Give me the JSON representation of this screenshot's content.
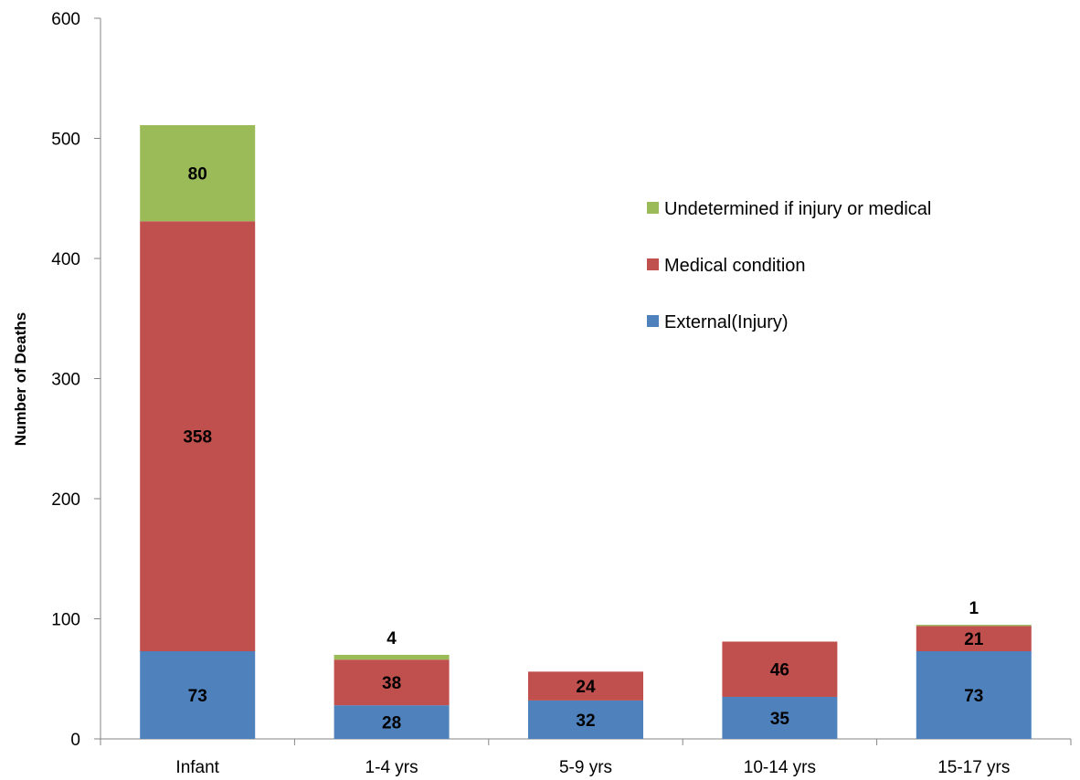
{
  "chart_data": {
    "type": "bar",
    "stacked": true,
    "categories": [
      "Infant",
      "1-4 yrs",
      "5-9 yrs",
      "10-14 yrs",
      "15-17 yrs"
    ],
    "series": [
      {
        "name": "External(Injury)",
        "values": [
          73,
          28,
          32,
          35,
          73
        ],
        "labels": [
          "73",
          "28",
          "32",
          "35",
          "73"
        ],
        "color": "#4f81bd"
      },
      {
        "name": "Medical condition",
        "values": [
          358,
          38,
          24,
          46,
          21
        ],
        "labels": [
          "358",
          "38",
          "24",
          "46",
          "21"
        ],
        "color": "#c0504d"
      },
      {
        "name": "Undetermined if injury or medical",
        "values": [
          80,
          4,
          0,
          0,
          1
        ],
        "labels": [
          "80",
          "4",
          "",
          "",
          "1"
        ],
        "color": "#9bbb59"
      }
    ],
    "title": "",
    "xlabel": "",
    "ylabel": "Number of Deaths",
    "ylim": [
      0,
      600
    ],
    "yticks": [
      0,
      100,
      200,
      300,
      400,
      500,
      600
    ],
    "grid": false,
    "legend_position": "right",
    "legend_order": [
      "Undetermined if injury or medical",
      "Medical condition",
      "External(Injury)"
    ]
  }
}
